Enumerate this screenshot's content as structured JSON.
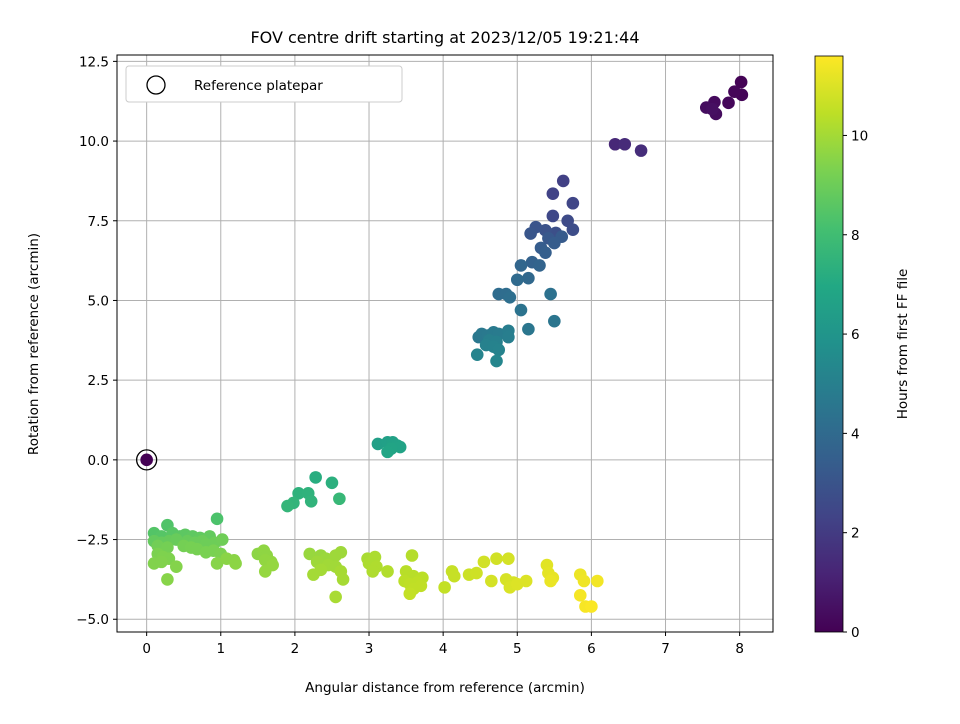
{
  "chart_data": {
    "type": "scatter",
    "title": "FOV centre drift starting at 2023/12/05 19:21:44",
    "xlabel": "Angular distance from reference (arcmin)",
    "ylabel": "Rotation from reference (arcmin)",
    "xlim": [
      -0.4,
      8.45
    ],
    "ylim": [
      -5.4,
      12.7
    ],
    "xticks": [
      0,
      1,
      2,
      3,
      4,
      5,
      6,
      7,
      8
    ],
    "yticks": [
      -5.0,
      -2.5,
      0.0,
      2.5,
      5.0,
      7.5,
      10.0,
      12.5
    ],
    "grid": true,
    "legend_position": "top-left",
    "legend": {
      "label": "Reference platepar"
    },
    "reference_point": {
      "x": 0,
      "y": 0
    },
    "colorbar": {
      "label": "Hours from first FF file",
      "range": [
        0,
        11.6
      ],
      "ticks": [
        0,
        2,
        4,
        6,
        8,
        10
      ],
      "colormap": "viridis"
    },
    "series": [
      {
        "points": [
          [
            8.02,
            11.85,
            0.05
          ],
          [
            8.03,
            11.45,
            0.1
          ],
          [
            7.93,
            11.55,
            0.15
          ],
          [
            7.85,
            11.2,
            0.2
          ],
          [
            7.66,
            11.22,
            0.3
          ],
          [
            7.68,
            10.85,
            0.35
          ],
          [
            7.55,
            11.05,
            0.4
          ],
          [
            7.63,
            11.0,
            0.45
          ],
          [
            6.32,
            9.9,
            1.3
          ],
          [
            6.45,
            9.9,
            1.4
          ],
          [
            6.67,
            9.7,
            1.5
          ],
          [
            5.62,
            8.75,
            2.2
          ],
          [
            5.48,
            8.35,
            2.3
          ],
          [
            5.75,
            8.05,
            2.4
          ],
          [
            5.48,
            7.65,
            2.5
          ],
          [
            5.68,
            7.5,
            2.6
          ],
          [
            5.75,
            7.22,
            2.7
          ],
          [
            5.52,
            7.12,
            2.8
          ],
          [
            5.38,
            7.2,
            2.9
          ],
          [
            5.25,
            7.3,
            3.0
          ],
          [
            5.18,
            7.1,
            3.1
          ],
          [
            5.42,
            6.95,
            3.2
          ],
          [
            5.6,
            7.0,
            3.3
          ],
          [
            5.5,
            6.8,
            3.35
          ],
          [
            5.32,
            6.65,
            3.4
          ],
          [
            5.38,
            6.5,
            3.5
          ],
          [
            5.2,
            6.2,
            3.6
          ],
          [
            5.3,
            6.1,
            3.7
          ],
          [
            5.05,
            6.1,
            3.8
          ],
          [
            5.15,
            5.7,
            3.9
          ],
          [
            5.0,
            5.65,
            4.0
          ],
          [
            4.75,
            5.2,
            4.1
          ],
          [
            4.85,
            5.2,
            4.15
          ],
          [
            4.9,
            5.1,
            4.2
          ],
          [
            5.45,
            5.2,
            4.3
          ],
          [
            5.05,
            4.7,
            4.4
          ],
          [
            5.5,
            4.35,
            4.5
          ],
          [
            5.15,
            4.1,
            4.55
          ],
          [
            4.48,
            3.85,
            4.6
          ],
          [
            4.52,
            3.95,
            4.65
          ],
          [
            4.6,
            3.9,
            4.7
          ],
          [
            4.68,
            4.0,
            4.75
          ],
          [
            4.75,
            3.95,
            4.8
          ],
          [
            4.88,
            4.05,
            4.85
          ],
          [
            4.88,
            3.85,
            4.9
          ],
          [
            4.62,
            3.75,
            4.95
          ],
          [
            4.72,
            3.7,
            5.0
          ],
          [
            4.58,
            3.6,
            5.05
          ],
          [
            4.68,
            3.55,
            5.1
          ],
          [
            4.75,
            3.45,
            5.15
          ],
          [
            4.46,
            3.3,
            5.2
          ],
          [
            4.72,
            3.1,
            5.3
          ],
          [
            3.12,
            0.5,
            6.5
          ],
          [
            3.25,
            0.55,
            6.55
          ],
          [
            3.32,
            0.55,
            6.6
          ],
          [
            3.38,
            0.45,
            6.65
          ],
          [
            3.42,
            0.4,
            6.7
          ],
          [
            3.3,
            0.35,
            6.75
          ],
          [
            3.25,
            0.25,
            6.8
          ],
          [
            2.28,
            -0.55,
            7.2
          ],
          [
            2.5,
            -0.72,
            7.3
          ],
          [
            2.05,
            -1.05,
            7.4
          ],
          [
            2.18,
            -1.05,
            7.45
          ],
          [
            2.22,
            -1.3,
            7.5
          ],
          [
            1.98,
            -1.35,
            7.55
          ],
          [
            1.9,
            -1.45,
            7.6
          ],
          [
            2.6,
            -1.22,
            7.7
          ],
          [
            0.95,
            -1.85,
            8.3
          ],
          [
            0.28,
            -2.05,
            8.4
          ],
          [
            0.1,
            -2.3,
            8.45
          ],
          [
            0.2,
            -2.4,
            8.5
          ],
          [
            0.35,
            -2.3,
            8.55
          ],
          [
            0.45,
            -2.4,
            8.6
          ],
          [
            0.52,
            -2.35,
            8.65
          ],
          [
            0.62,
            -2.4,
            8.7
          ],
          [
            0.72,
            -2.45,
            8.75
          ],
          [
            0.85,
            -2.4,
            8.8
          ],
          [
            0.1,
            -2.55,
            8.8
          ],
          [
            0.2,
            -2.6,
            8.85
          ],
          [
            0.3,
            -2.55,
            8.85
          ],
          [
            0.4,
            -2.5,
            8.9
          ],
          [
            0.55,
            -2.55,
            8.9
          ],
          [
            0.65,
            -2.6,
            8.95
          ],
          [
            0.75,
            -2.55,
            8.95
          ],
          [
            0.8,
            -2.65,
            9.0
          ],
          [
            0.92,
            -2.6,
            9.0
          ],
          [
            1.02,
            -2.5,
            9.05
          ],
          [
            0.15,
            -2.7,
            9.1
          ],
          [
            0.22,
            -2.8,
            9.1
          ],
          [
            0.28,
            -2.75,
            9.15
          ],
          [
            0.5,
            -2.7,
            9.15
          ],
          [
            0.6,
            -2.75,
            9.2
          ],
          [
            0.68,
            -2.8,
            9.2
          ],
          [
            0.8,
            -2.9,
            9.25
          ],
          [
            0.9,
            -2.85,
            9.25
          ],
          [
            1.0,
            -2.95,
            9.3
          ],
          [
            0.15,
            -2.95,
            9.3
          ],
          [
            0.22,
            -3.05,
            9.35
          ],
          [
            0.3,
            -3.1,
            9.35
          ],
          [
            0.1,
            -3.25,
            9.4
          ],
          [
            0.2,
            -3.2,
            9.4
          ],
          [
            0.4,
            -3.35,
            9.45
          ],
          [
            0.28,
            -3.75,
            9.5
          ],
          [
            0.95,
            -3.25,
            9.5
          ],
          [
            1.08,
            -3.1,
            9.55
          ],
          [
            1.18,
            -3.15,
            9.55
          ],
          [
            1.2,
            -3.25,
            9.6
          ],
          [
            1.5,
            -2.95,
            9.6
          ],
          [
            1.58,
            -2.85,
            9.65
          ],
          [
            1.62,
            -3.0,
            9.65
          ],
          [
            1.6,
            -3.15,
            9.7
          ],
          [
            1.68,
            -3.2,
            9.7
          ],
          [
            1.7,
            -3.3,
            9.75
          ],
          [
            1.6,
            -3.5,
            9.75
          ],
          [
            2.2,
            -2.95,
            9.8
          ],
          [
            2.35,
            -3.0,
            9.8
          ],
          [
            2.42,
            -3.1,
            9.85
          ],
          [
            2.5,
            -3.15,
            9.85
          ],
          [
            2.55,
            -3.0,
            9.9
          ],
          [
            2.62,
            -2.9,
            9.9
          ],
          [
            2.3,
            -3.2,
            9.9
          ],
          [
            2.45,
            -3.3,
            9.95
          ],
          [
            2.55,
            -3.35,
            9.95
          ],
          [
            2.35,
            -3.45,
            10.0
          ],
          [
            2.25,
            -3.6,
            10.0
          ],
          [
            2.62,
            -3.5,
            10.05
          ],
          [
            2.65,
            -3.75,
            10.05
          ],
          [
            2.55,
            -4.3,
            10.1
          ],
          [
            2.98,
            -3.1,
            10.1
          ],
          [
            3.08,
            -3.05,
            10.15
          ],
          [
            3.0,
            -3.25,
            10.15
          ],
          [
            3.1,
            -3.35,
            10.2
          ],
          [
            3.05,
            -3.5,
            10.2
          ],
          [
            3.25,
            -3.5,
            10.25
          ],
          [
            3.58,
            -3.0,
            10.3
          ],
          [
            3.5,
            -3.5,
            10.35
          ],
          [
            3.6,
            -3.65,
            10.35
          ],
          [
            3.72,
            -3.7,
            10.4
          ],
          [
            3.48,
            -3.8,
            10.4
          ],
          [
            3.55,
            -3.9,
            10.45
          ],
          [
            3.65,
            -3.85,
            10.45
          ],
          [
            3.7,
            -3.95,
            10.5
          ],
          [
            3.6,
            -4.05,
            10.5
          ],
          [
            3.55,
            -4.2,
            10.55
          ],
          [
            4.02,
            -4.0,
            10.55
          ],
          [
            4.12,
            -3.5,
            10.6
          ],
          [
            4.15,
            -3.65,
            10.6
          ],
          [
            4.35,
            -3.6,
            10.7
          ],
          [
            4.45,
            -3.55,
            10.75
          ],
          [
            4.55,
            -3.2,
            10.8
          ],
          [
            4.72,
            -3.1,
            10.8
          ],
          [
            4.88,
            -3.1,
            10.85
          ],
          [
            4.65,
            -3.8,
            10.85
          ],
          [
            4.85,
            -3.75,
            10.9
          ],
          [
            4.95,
            -3.85,
            10.9
          ],
          [
            4.9,
            -4.0,
            10.95
          ],
          [
            5.0,
            -3.9,
            11.0
          ],
          [
            5.12,
            -3.8,
            11.0
          ],
          [
            5.4,
            -3.3,
            11.1
          ],
          [
            5.42,
            -3.55,
            11.15
          ],
          [
            5.48,
            -3.7,
            11.2
          ],
          [
            5.45,
            -3.8,
            11.25
          ],
          [
            5.85,
            -3.6,
            11.3
          ],
          [
            5.9,
            -3.8,
            11.35
          ],
          [
            6.08,
            -3.8,
            11.4
          ],
          [
            5.85,
            -4.25,
            11.45
          ],
          [
            5.92,
            -4.6,
            11.5
          ],
          [
            6.0,
            -4.6,
            11.55
          ]
        ]
      }
    ]
  }
}
